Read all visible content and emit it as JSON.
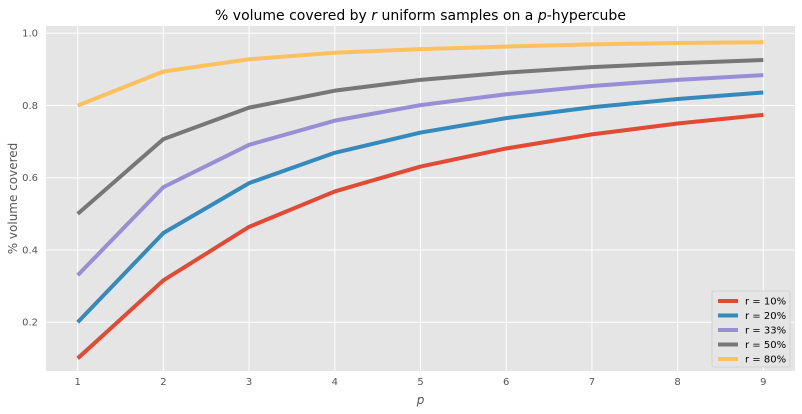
{
  "chart_data": {
    "type": "line",
    "title": {
      "before": "% volume covered by ",
      "var1": "r",
      "middle": " uniform samples on a ",
      "var2": "p",
      "after": "-hypercube"
    },
    "xlabel": "p",
    "ylabel": "% volume covered",
    "x": [
      1,
      2,
      3,
      4,
      5,
      6,
      7,
      8,
      9
    ],
    "xlim": [
      0.63,
      9.37
    ],
    "ylim": [
      0.065,
      1.02
    ],
    "xticks": [
      "1",
      "2",
      "3",
      "4",
      "5",
      "6",
      "7",
      "8",
      "9"
    ],
    "yticks": [
      {
        "value": 0.2,
        "label": "0.2"
      },
      {
        "value": 0.4,
        "label": "0.4"
      },
      {
        "value": 0.6,
        "label": "0.6"
      },
      {
        "value": 0.8,
        "label": "0.8"
      },
      {
        "value": 1.0,
        "label": "1.0"
      }
    ],
    "grid": true,
    "legend_position": "bottom-right",
    "series": [
      {
        "name": "r = 10%",
        "color": "#E24A33",
        "values": [
          0.1,
          0.316,
          0.464,
          0.562,
          0.631,
          0.681,
          0.72,
          0.75,
          0.774
        ]
      },
      {
        "name": "r = 20%",
        "color": "#348ABD",
        "values": [
          0.2,
          0.447,
          0.585,
          0.669,
          0.725,
          0.765,
          0.795,
          0.818,
          0.836
        ]
      },
      {
        "name": "r = 33%",
        "color": "#988ED5",
        "values": [
          0.33,
          0.574,
          0.691,
          0.758,
          0.801,
          0.831,
          0.854,
          0.871,
          0.884
        ]
      },
      {
        "name": "r = 50%",
        "color": "#777777",
        "values": [
          0.5,
          0.707,
          0.794,
          0.841,
          0.871,
          0.891,
          0.906,
          0.917,
          0.926
        ]
      },
      {
        "name": "r = 80%",
        "color": "#FBC15E",
        "values": [
          0.8,
          0.894,
          0.928,
          0.946,
          0.956,
          0.963,
          0.969,
          0.973,
          0.975
        ]
      }
    ]
  }
}
